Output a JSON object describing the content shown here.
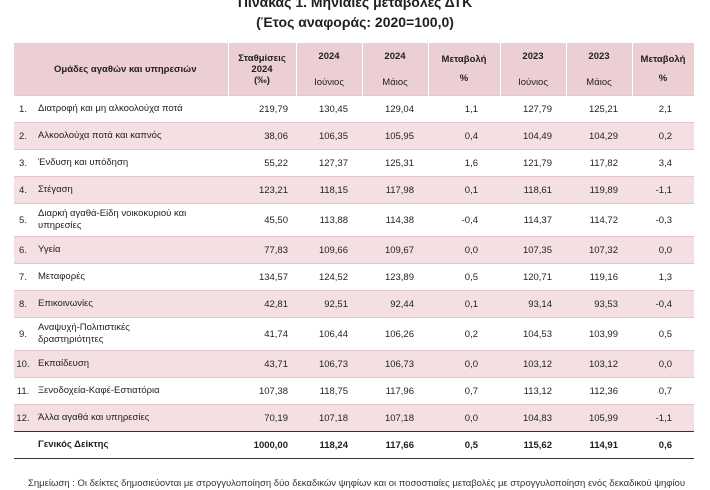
{
  "title": "Πίνακας 1. Μηνιαίες μεταβολές ΔΤΚ",
  "subtitle": "(Έτος αναφοράς: 2020=100,0)",
  "headers": {
    "group": "Ομάδες αγαθών και υπηρεσιών",
    "weights_l1": "Σταθμίσεις",
    "weights_l2": "2024",
    "weights_l3": "(‰)",
    "y2024a": "2024",
    "y2024b": "2024",
    "change1_l1": "Μεταβολή",
    "change1_l2": "%",
    "y2023a": "2023",
    "y2023b": "2023",
    "change2_l1": "Μεταβολή",
    "change2_l2": "%",
    "june": "Ιούνιος",
    "may": "Μάιος",
    "june2": "Ιούνιος",
    "may2": "Μάιος"
  },
  "rows": [
    {
      "num": "1.",
      "name": "Διατροφή και μη αλκοολούχα ποτά",
      "weight": "219,79",
      "jun24": "130,45",
      "may24": "129,04",
      "chg24": "1,1",
      "jun23": "127,79",
      "may23": "125,21",
      "chg23": "2,1"
    },
    {
      "num": "2.",
      "name": "Αλκοολούχα ποτά και καπνός",
      "weight": "38,06",
      "jun24": "106,35",
      "may24": "105,95",
      "chg24": "0,4",
      "jun23": "104,49",
      "may23": "104,29",
      "chg23": "0,2"
    },
    {
      "num": "3.",
      "name": "Ένδυση και υπόδηση",
      "weight": "55,22",
      "jun24": "127,37",
      "may24": "125,31",
      "chg24": "1,6",
      "jun23": "121,79",
      "may23": "117,82",
      "chg23": "3,4"
    },
    {
      "num": "4.",
      "name": "Στέγαση",
      "weight": "123,21",
      "jun24": "118,15",
      "may24": "117,98",
      "chg24": "0,1",
      "jun23": "118,61",
      "may23": "119,89",
      "chg23": "-1,1"
    },
    {
      "num": "5.",
      "name": "Διαρκή αγαθά-Είδη νοικοκυριού και",
      "name2": "υπηρεσίες",
      "weight": "45,50",
      "jun24": "113,88",
      "may24": "114,38",
      "chg24": "-0,4",
      "jun23": "114,37",
      "may23": "114,72",
      "chg23": "-0,3"
    },
    {
      "num": "6.",
      "name": "Υγεία",
      "weight": "77,83",
      "jun24": "109,66",
      "may24": "109,67",
      "chg24": "0,0",
      "jun23": "107,35",
      "may23": "107,32",
      "chg23": "0,0"
    },
    {
      "num": "7.",
      "name": "Μεταφορές",
      "weight": "134,57",
      "jun24": "124,52",
      "may24": "123,89",
      "chg24": "0,5",
      "jun23": "120,71",
      "may23": "119,16",
      "chg23": "1,3"
    },
    {
      "num": "8.",
      "name": "Επικοινωνίες",
      "weight": "42,81",
      "jun24": "92,51",
      "may24": "92,44",
      "chg24": "0,1",
      "jun23": "93,14",
      "may23": "93,53",
      "chg23": "-0,4"
    },
    {
      "num": "9.",
      "name": "Αναψυχή-Πολιτιστικές",
      "name2": "δραστηριότητες",
      "weight": "41,74",
      "jun24": "106,44",
      "may24": "106,26",
      "chg24": "0,2",
      "jun23": "104,53",
      "may23": "103,99",
      "chg23": "0,5"
    },
    {
      "num": "10.",
      "name": "Εκπαίδευση",
      "weight": "43,71",
      "jun24": "106,73",
      "may24": "106,73",
      "chg24": "0,0",
      "jun23": "103,12",
      "may23": "103,12",
      "chg23": "0,0"
    },
    {
      "num": "11.",
      "name": "Ξενοδοχεία-Καφέ-Εστιατόρια",
      "weight": "107,38",
      "jun24": "118,75",
      "may24": "117,96",
      "chg24": "0,7",
      "jun23": "113,12",
      "may23": "112,36",
      "chg23": "0,7"
    },
    {
      "num": "12.",
      "name": "Άλλα αγαθά και υπηρεσίες",
      "weight": "70,19",
      "jun24": "107,18",
      "may24": "107,18",
      "chg24": "0,0",
      "jun23": "104,83",
      "may23": "105,99",
      "chg23": "-1,1"
    }
  ],
  "total": {
    "name": "Γενικός Δείκτης",
    "weight": "1000,00",
    "jun24": "118,24",
    "may24": "117,66",
    "chg24": "0,5",
    "jun23": "115,62",
    "may23": "114,91",
    "chg23": "0,6"
  },
  "note": "Σημείωση : Οι δείκτες δημοσιεύονται με στρογγυλοποίηση δύο δεκαδικών ψηφίων και οι ποσοστιαίες μεταβολές με στρογγυλοποίηση ενός δεκαδικού ψηφίου"
}
